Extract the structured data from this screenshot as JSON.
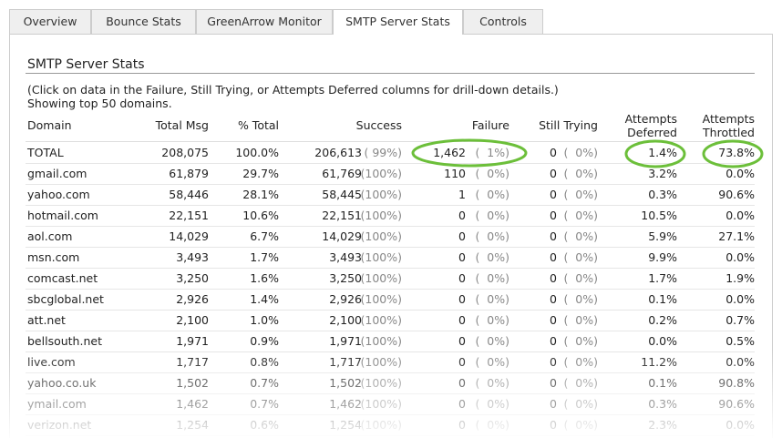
{
  "tabs": [
    "Overview",
    "Bounce Stats",
    "GreenArrow Monitor",
    "SMTP Server Stats",
    "Controls"
  ],
  "active_tab": 3,
  "section_title": "SMTP Server Stats",
  "notes": [
    "(Click on data in the Failure, Still Trying, or Attempts Deferred columns for drill-down details.)",
    "Showing top 50 domains."
  ],
  "table": {
    "headers": [
      [
        "Domain"
      ],
      [
        "Total Msg"
      ],
      [
        "% Total"
      ],
      [
        "Success"
      ],
      [
        "Failure"
      ],
      [
        "Still Trying"
      ],
      [
        "Attempts",
        "Deferred"
      ],
      [
        "Attempts",
        "Throttled"
      ]
    ],
    "rows": [
      [
        "TOTAL",
        "208,075",
        "100.0%",
        "206,613",
        "( 99%)",
        "1,462",
        "(  1%)",
        "0",
        "(  0%)",
        "1.4%",
        "73.8%"
      ],
      [
        "gmail.com",
        "61,879",
        "29.7%",
        "61,769",
        "(100%)",
        "110",
        "(  0%)",
        "0",
        "(  0%)",
        "3.2%",
        "0.0%"
      ],
      [
        "yahoo.com",
        "58,446",
        "28.1%",
        "58,445",
        "(100%)",
        "1",
        "(  0%)",
        "0",
        "(  0%)",
        "0.3%",
        "90.6%"
      ],
      [
        "hotmail.com",
        "22,151",
        "10.6%",
        "22,151",
        "(100%)",
        "0",
        "(  0%)",
        "0",
        "(  0%)",
        "10.5%",
        "0.0%"
      ],
      [
        "aol.com",
        "14,029",
        "6.7%",
        "14,029",
        "(100%)",
        "0",
        "(  0%)",
        "0",
        "(  0%)",
        "5.9%",
        "27.1%"
      ],
      [
        "msn.com",
        "3,493",
        "1.7%",
        "3,493",
        "(100%)",
        "0",
        "(  0%)",
        "0",
        "(  0%)",
        "9.9%",
        "0.0%"
      ],
      [
        "comcast.net",
        "3,250",
        "1.6%",
        "3,250",
        "(100%)",
        "0",
        "(  0%)",
        "0",
        "(  0%)",
        "1.7%",
        "1.9%"
      ],
      [
        "sbcglobal.net",
        "2,926",
        "1.4%",
        "2,926",
        "(100%)",
        "0",
        "(  0%)",
        "0",
        "(  0%)",
        "0.1%",
        "0.0%"
      ],
      [
        "att.net",
        "2,100",
        "1.0%",
        "2,100",
        "(100%)",
        "0",
        "(  0%)",
        "0",
        "(  0%)",
        "0.2%",
        "0.7%"
      ],
      [
        "bellsouth.net",
        "1,971",
        "0.9%",
        "1,971",
        "(100%)",
        "0",
        "(  0%)",
        "0",
        "(  0%)",
        "0.0%",
        "0.5%"
      ],
      [
        "live.com",
        "1,717",
        "0.8%",
        "1,717",
        "(100%)",
        "0",
        "(  0%)",
        "0",
        "(  0%)",
        "11.2%",
        "0.0%"
      ],
      [
        "yahoo.co.uk",
        "1,502",
        "0.7%",
        "1,502",
        "(100%)",
        "0",
        "(  0%)",
        "0",
        "(  0%)",
        "0.1%",
        "90.8%"
      ],
      [
        "ymail.com",
        "1,462",
        "0.7%",
        "1,462",
        "(100%)",
        "0",
        "(  0%)",
        "0",
        "(  0%)",
        "0.3%",
        "90.6%"
      ],
      [
        "verizon.net",
        "1,254",
        "0.6%",
        "1,254",
        "(100%)",
        "0",
        "(  0%)",
        "0",
        "(  0%)",
        "2.3%",
        "0.0%"
      ]
    ]
  }
}
